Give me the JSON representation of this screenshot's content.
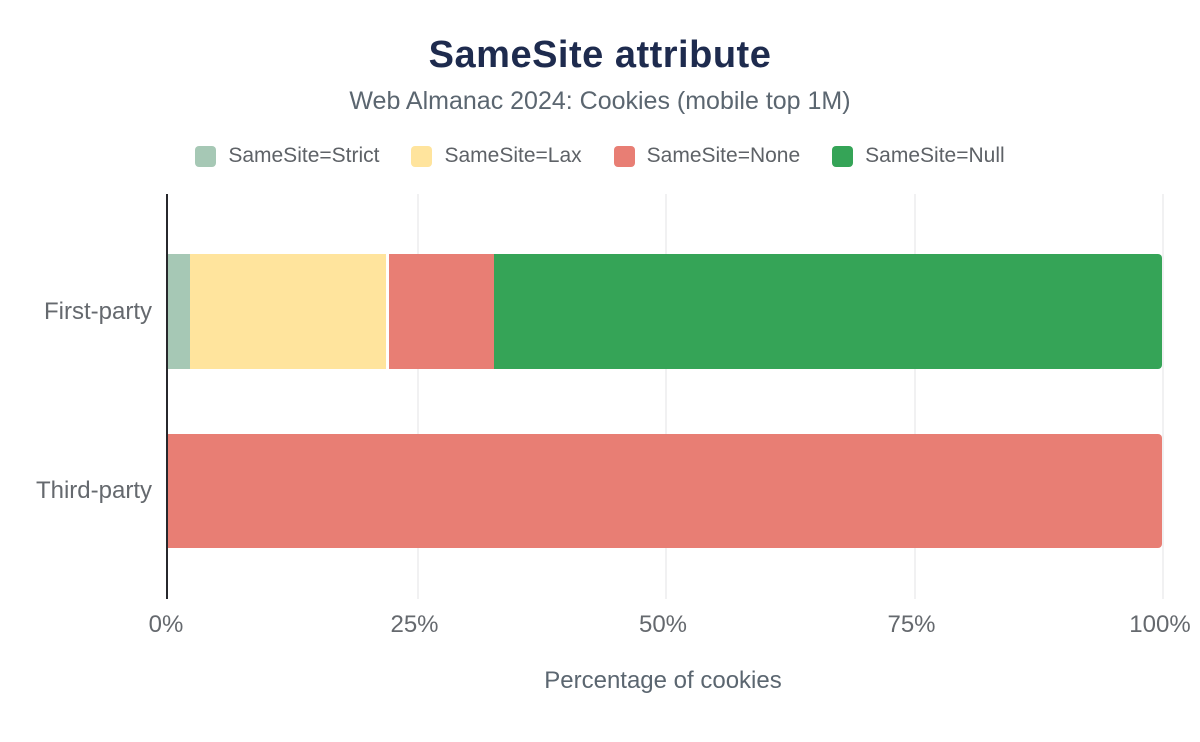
{
  "title": "SameSite attribute",
  "subtitle": "Web Almanac 2024: Cookies (mobile top 1M)",
  "colors": {
    "title": "#1e2b4e",
    "subtitle": "#5b6670",
    "axis_text": "#65696e",
    "axis_line": "#27282c",
    "gridline": "#f1f1f2",
    "background": "#ffffff"
  },
  "chart_data": {
    "type": "bar",
    "orientation": "horizontal",
    "stacked": true,
    "title": "SameSite attribute",
    "subtitle": "Web Almanac 2024: Cookies (mobile top 1M)",
    "categories": [
      "First-party",
      "Third-party"
    ],
    "series": [
      {
        "name": "SameSite=Strict",
        "color": "#a6c8b5",
        "values": [
          2.2,
          0
        ]
      },
      {
        "name": "SameSite=Lax",
        "color": "#ffe49d",
        "values": [
          19.7,
          0
        ]
      },
      {
        "name": "SameSite=None",
        "color": "#e87e74",
        "values": [
          10.9,
          100
        ]
      },
      {
        "name": "SameSite=Null",
        "color": "#35a457",
        "values": [
          67.2,
          0
        ]
      }
    ],
    "xlabel": "Percentage of cookies",
    "ylabel": "",
    "xlim": [
      0,
      100
    ],
    "x_ticks": [
      {
        "value": 0,
        "label": "0%"
      },
      {
        "value": 25,
        "label": "25%"
      },
      {
        "value": 50,
        "label": "50%"
      },
      {
        "value": 75,
        "label": "75%"
      },
      {
        "value": 100,
        "label": "100%"
      }
    ],
    "legend_position": "top",
    "grid": "vertical"
  }
}
